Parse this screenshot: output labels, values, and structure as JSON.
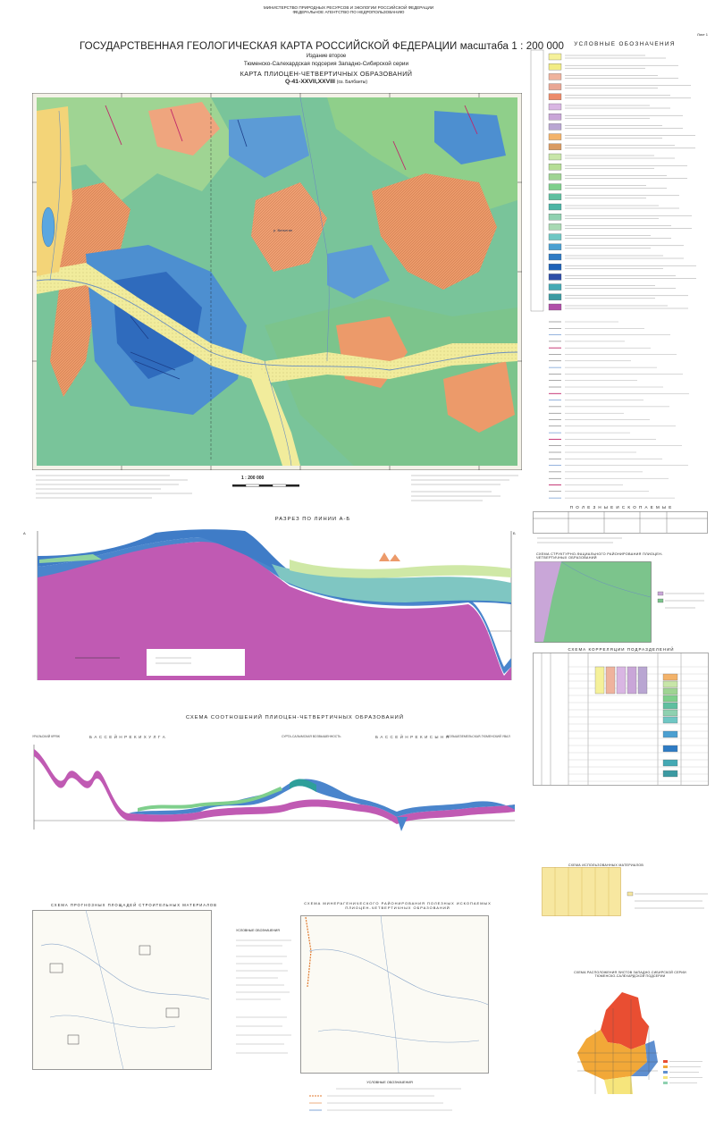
{
  "header": {
    "ministry": "МИНИСТЕРСТВО ПРИРОДНЫХ РЕСУРСОВ И ЭКОЛОГИИ РОССИЙСКОЙ ФЕДЕРАЦИИ",
    "agency": "ФЕДЕРАЛЬНОЕ АГЕНТСТВО ПО НЕДРОПОЛЬЗОВАНИЮ",
    "title": "ГОСУДАРСТВЕННАЯ ГЕОЛОГИЧЕСКАЯ КАРТА РОССИЙСКОЙ ФЕДЕРАЦИИ масштаба 1 : 200 000",
    "edition": "Издание второе",
    "series": "Тюменско-Салехардская подсерия Западно-Сибирской серии",
    "map_name": "КАРТА ПЛИОЦЕН-ЧЕТВЕРТИЧНЫХ ОБРАЗОВАНИЙ",
    "sheet_code": "Q-41-XXVII,XXVIII",
    "sheet_suffix": "(оз. Балбанты)",
    "sheet_number": "Лист 1"
  },
  "legend": {
    "title": "УСЛОВНЫЕ ОБОЗНАЧЕНИЯ",
    "colors": [
      "#f5f19a",
      "#f2ec84",
      "#efb39d",
      "#e9a694",
      "#ec8a6a",
      "#d9b6e3",
      "#c9a6d8",
      "#b9a6d2",
      "#f3b36a",
      "#d99b63",
      "#c8e6a8",
      "#b5de95",
      "#9fd493",
      "#7fcf8c",
      "#5fbfa0",
      "#4cb5a5",
      "#8fd1b0",
      "#a8d9b3",
      "#6fc7c4",
      "#4b9fd1",
      "#2e7bc4",
      "#1d62b8",
      "#2d4ea8",
      "#44a9b4",
      "#3c9aa2",
      "#b04fa8"
    ]
  },
  "map": {
    "scale_text": "1 : 200 000",
    "river_label": "р. Ватьеган"
  },
  "sections": {
    "profile_title": "РАЗРЕЗ ПО ЛИНИИ А-Б",
    "scheme_title": "СХЕМА СООТНОШЕНИЙ ПЛИОЦЕН-ЧЕТВЕРТИЧНЫХ ОБРАЗОВАНИЙ",
    "basin_1": "Б А С С Е Й Н   Р Е К И   Х У Л Г А",
    "basin_2": "Б А С С Е Й Н   Р Е К И   С Ы Н Я",
    "ridge_1": "УРАЛЬСКИЙ КРЯЖ",
    "ridge_2": "СУРТА-САЛЫМСКАЯ ВОЗВЫШЕННОСТЬ",
    "ridge_3": "БОЛЬШЕЗЕМЕЛЬСКАЯ-ТЮМЕНСКИЙ УВАЛ"
  },
  "side_panels": {
    "minerals_title": "П О Л Е З Н Ы Е   И С К О П А Е М Ы Е",
    "structural_title": "СХЕМА СТРУКТУРНО-ФАЦИАЛЬНОГО РАЙОНИРОВАНИЯ ПЛИОЦЕН-ЧЕТВЕРТИЧНЫХ ОБРАЗОВАНИЙ",
    "correlation_title": "СХЕМА КОРРЕЛЯЦИИ ПОДРАЗДЕЛЕНИЙ",
    "used_materials_title": "СХЕМА ИСПОЛЬЗОВАННЫХ МАТЕРИАЛОВ",
    "placement_title": "СХЕМА РАСПОЛОЖЕНИЯ ЛИСТОВ ЗАПАДНО-СИБИРСКОЙ СЕРИИ ТЮМЕНСКО-САЛЕХАРДСКОЙ ПОДСЕРИИ"
  },
  "bottom": {
    "left_title": "СХЕМА ПРОГНОЗНЫХ ПЛОЩАДЕЙ СТРОИТЕЛЬНЫХ МАТЕРИАЛОВ",
    "mid_title": "СХЕМА МИНЕРАГЕНИЧЕСКОГО РАЙОНИРОВАНИЯ ПОЛЕЗНЫХ ИСКОПАЕМЫХ ПЛИОЦЕН-ЧЕТВЕРТИЧНЫХ ОБРАЗОВАНИЙ",
    "left_legend_title": "УСЛОВНЫЕ ОБОЗНАЧЕНИЯ",
    "bottom_legend_title": "УСЛОВНЫЕ ОБОЗНАЧЕНИЯ"
  }
}
